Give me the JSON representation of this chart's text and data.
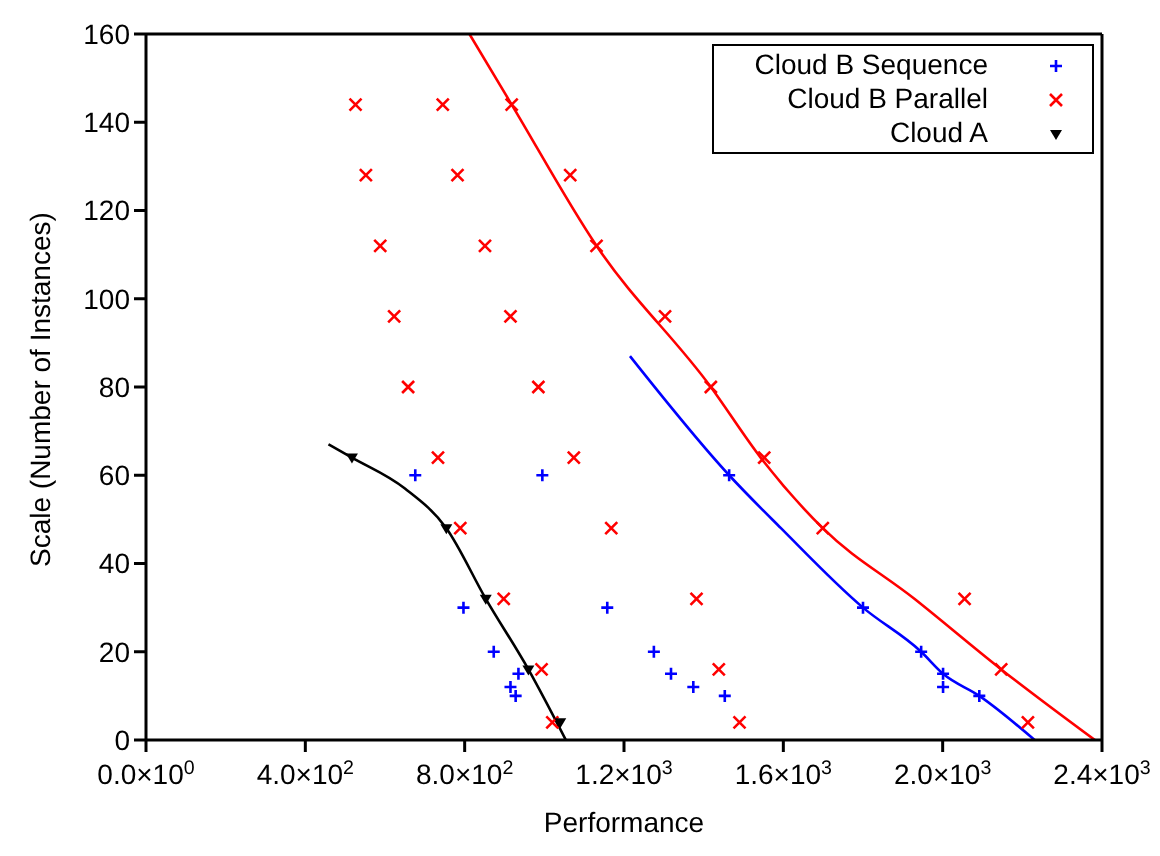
{
  "chart_data": {
    "type": "scatter",
    "xlabel": "Performance",
    "ylabel": "Scale (Number of Instances)",
    "xlim": [
      0,
      2400
    ],
    "ylim": [
      0,
      160
    ],
    "xticks": [
      {
        "value": 0,
        "label": "0.0×10$^{0}$"
      },
      {
        "value": 400,
        "label": "4.0×10$^{2}$"
      },
      {
        "value": 800,
        "label": "8.0×10$^{2}$"
      },
      {
        "value": 1200,
        "label": "1.2×10$^{3}$"
      },
      {
        "value": 1600,
        "label": "1.6×10$^{3}$"
      },
      {
        "value": 2000,
        "label": "2.0×10$^{3}$"
      },
      {
        "value": 2400,
        "label": "2.4×10$^{3}$"
      }
    ],
    "yticks": [
      0,
      20,
      40,
      60,
      80,
      100,
      120,
      140,
      160
    ],
    "legend": "top right",
    "series": [
      {
        "name": "Cloud B Sequence",
        "color": "#0000ff",
        "marker": "plus",
        "x": [
          676,
          995,
          1464,
          797,
          1158,
          1800,
          873,
          1275,
          1946,
          935,
          1318,
          2001,
          915,
          1374,
          2001,
          928,
          1453,
          2092
        ],
        "values": [
          60,
          60,
          60,
          30,
          30,
          30,
          20,
          20,
          20,
          15,
          15,
          15,
          12,
          12,
          12,
          10,
          10,
          10
        ]
      },
      {
        "name": "Cloud B Parallel",
        "color": "#ff0000",
        "marker": "cross",
        "x": [
          526,
          745,
          918,
          552,
          782,
          1065,
          588,
          851,
          1131,
          623,
          915,
          1303,
          658,
          985,
          1418,
          733,
          1074,
          1552,
          789,
          1168,
          1699,
          898,
          1382,
          2055,
          993,
          1438,
          2147,
          1020,
          1490,
          2214
        ],
        "values": [
          144,
          144,
          144,
          128,
          128,
          128,
          112,
          112,
          112,
          96,
          96,
          96,
          80,
          80,
          80,
          64,
          64,
          64,
          48,
          48,
          48,
          32,
          32,
          32,
          16,
          16,
          16,
          4,
          4,
          4
        ]
      },
      {
        "name": "Cloud A",
        "color": "#000000",
        "marker": "triangle",
        "x": [
          517,
          754,
          853,
          960,
          1040
        ],
        "values": [
          64,
          48,
          32,
          16,
          4
        ]
      },
      {
        "type": "line",
        "color": "#0000ff",
        "marker": "none",
        "x": [
          1215,
          1464,
          1594,
          1800,
          1946,
          2001,
          2092,
          2231
        ],
        "values": [
          87,
          60,
          48,
          30,
          20,
          15,
          10,
          0
        ]
      },
      {
        "type": "line",
        "color": "#ff0000",
        "marker": "none",
        "x": [
          812,
          918,
          1131,
          1418,
          1543,
          1699,
          1929,
          2147,
          2382
        ],
        "values": [
          160,
          144,
          112,
          80,
          64,
          48,
          32,
          16,
          0
        ]
      },
      {
        "type": "line",
        "color": "#000000",
        "marker": "none",
        "x": [
          458,
          517,
          650,
          754,
          853,
          960,
          1054
        ],
        "values": [
          67,
          64,
          57,
          48,
          32,
          16,
          0
        ]
      }
    ]
  }
}
